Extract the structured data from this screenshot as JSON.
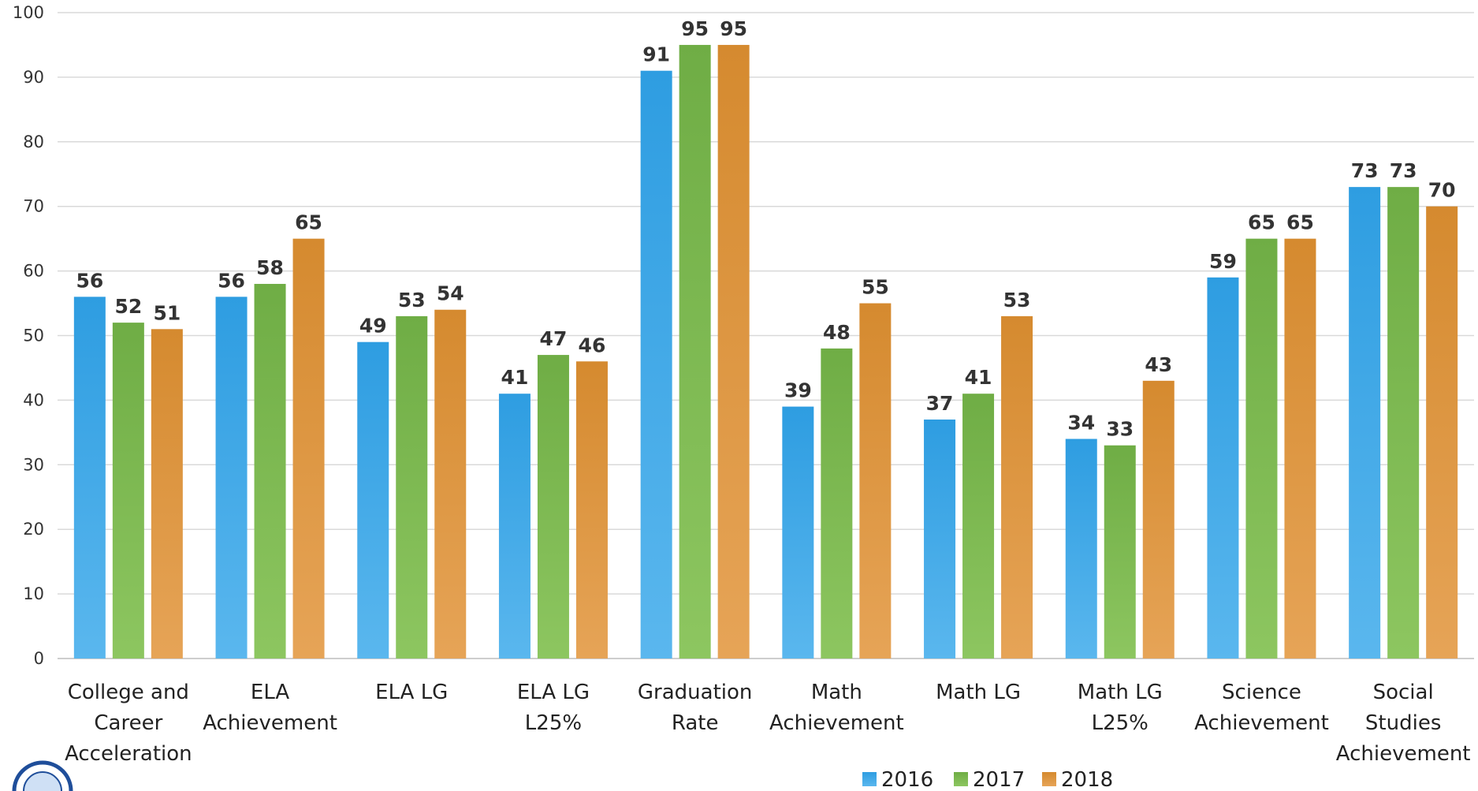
{
  "chart_data": {
    "type": "bar",
    "title": "",
    "xlabel": "",
    "ylabel": "",
    "ylim": [
      0,
      100
    ],
    "yticks": [
      "0",
      "10",
      "20",
      "30",
      "40",
      "50",
      "60",
      "70",
      "80",
      "90",
      "100"
    ],
    "grid": true,
    "legend": "bottom-right",
    "categories": [
      [
        "College and",
        "Career",
        "Acceleration"
      ],
      [
        "ELA",
        "Achievement"
      ],
      [
        "ELA LG"
      ],
      [
        "ELA LG",
        "L25%"
      ],
      [
        "Graduation",
        "Rate"
      ],
      [
        "Math",
        "Achievement"
      ],
      [
        "Math LG"
      ],
      [
        "Math LG",
        "L25%"
      ],
      [
        "Science",
        "Achievement"
      ],
      [
        "Social",
        "Studies",
        "Achievement"
      ]
    ],
    "series": [
      {
        "name": "2016",
        "color": "#2e9de1",
        "color_light": "#5ab7ee",
        "values": [
          56,
          56,
          49,
          41,
          91,
          39,
          37,
          34,
          59,
          73
        ]
      },
      {
        "name": "2017",
        "color": "#6fad45",
        "color_light": "#8dc660",
        "values": [
          52,
          58,
          53,
          47,
          95,
          48,
          41,
          33,
          65,
          73
        ]
      },
      {
        "name": "2018",
        "color": "#d58a2f",
        "color_light": "#e6a457",
        "values": [
          51,
          65,
          54,
          46,
          95,
          55,
          53,
          43,
          65,
          70
        ]
      }
    ]
  }
}
